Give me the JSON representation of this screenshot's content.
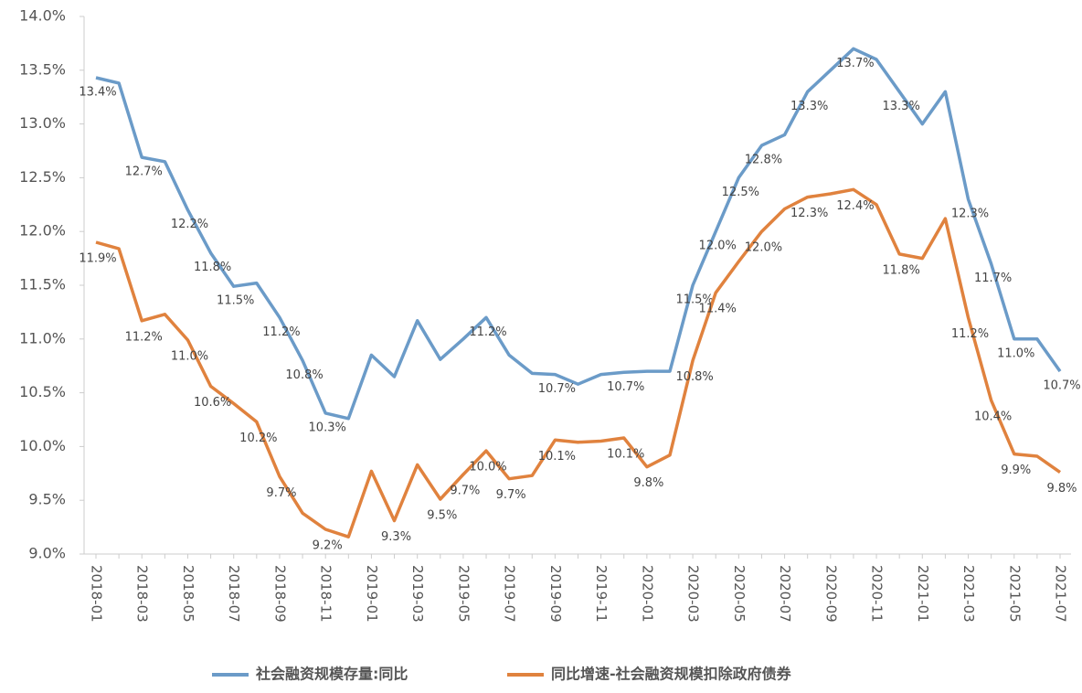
{
  "chart_data": {
    "type": "line",
    "categories": [
      "2018-01",
      null,
      "2018-03",
      null,
      "2018-05",
      null,
      "2018-07",
      null,
      "2018-09",
      null,
      "2018-11",
      null,
      "2019-01",
      null,
      "2019-03",
      null,
      "2019-05",
      null,
      "2019-07",
      null,
      "2019-09",
      null,
      "2019-11",
      null,
      "2020-01",
      null,
      "2020-03",
      null,
      "2020-05",
      null,
      "2020-07",
      null,
      "2020-09",
      null,
      "2020-11",
      null,
      "2021-01",
      null,
      "2021-03",
      null,
      "2021-05",
      null,
      "2021-07"
    ],
    "series": [
      {
        "name": "社会融资规模存量:同比",
        "color": "#6b9bc8",
        "values": [
          13.43,
          13.38,
          12.69,
          12.65,
          12.2,
          11.8,
          11.49,
          11.52,
          11.2,
          10.8,
          10.31,
          10.26,
          10.85,
          10.65,
          11.17,
          10.81,
          11.0,
          11.2,
          10.85,
          10.68,
          10.67,
          10.58,
          10.67,
          10.69,
          10.7,
          10.7,
          11.5,
          12.0,
          12.5,
          12.8,
          12.9,
          13.3,
          13.5,
          13.7,
          13.6,
          13.3,
          13.0,
          13.3,
          12.3,
          11.7,
          11.0,
          11.0,
          10.7
        ],
        "value_labels": [
          "13.4%",
          null,
          "12.7%",
          null,
          "12.2%",
          "11.8%",
          "11.5%",
          null,
          "11.2%",
          "10.8%",
          "10.3%",
          null,
          null,
          null,
          null,
          null,
          null,
          "11.2%",
          null,
          null,
          "10.7%",
          null,
          null,
          "10.7%",
          null,
          null,
          "11.5%",
          "12.0%",
          "12.5%",
          "12.8%",
          null,
          "13.3%",
          null,
          "13.7%",
          null,
          "13.3%",
          null,
          null,
          "12.3%",
          "11.7%",
          "11.0%",
          null,
          "10.7%"
        ]
      },
      {
        "name": "同比增速-社会融资规模扣除政府债券",
        "color": "#e0823e",
        "values": [
          11.9,
          11.84,
          11.17,
          11.23,
          10.99,
          10.56,
          10.4,
          10.23,
          9.72,
          9.38,
          9.23,
          9.16,
          9.77,
          9.31,
          9.83,
          9.51,
          9.74,
          9.96,
          9.7,
          9.73,
          10.06,
          10.04,
          10.05,
          10.08,
          9.81,
          9.92,
          10.8,
          11.43,
          11.72,
          12.0,
          12.21,
          12.32,
          12.35,
          12.39,
          12.25,
          11.79,
          11.75,
          12.12,
          11.2,
          10.43,
          9.93,
          9.91,
          9.76
        ],
        "value_labels": [
          "11.9%",
          null,
          "11.2%",
          null,
          "11.0%",
          "10.6%",
          null,
          "10.2%",
          "9.7%",
          null,
          "9.2%",
          null,
          null,
          "9.3%",
          null,
          "9.5%",
          "9.7%",
          "10.0%",
          "9.7%",
          null,
          "10.1%",
          null,
          null,
          "10.1%",
          "9.8%",
          null,
          "10.8%",
          "11.4%",
          null,
          "12.0%",
          null,
          "12.3%",
          null,
          "12.4%",
          null,
          "11.8%",
          null,
          null,
          "11.2%",
          "10.4%",
          "9.9%",
          null,
          "9.8%"
        ]
      }
    ],
    "ylim": [
      9,
      14
    ],
    "yticks": [
      {
        "value": 9,
        "label": "9.0%"
      },
      {
        "value": 9.5,
        "label": "9.5%"
      },
      {
        "value": 10,
        "label": "10.0%"
      },
      {
        "value": 10.5,
        "label": "10.5%"
      },
      {
        "value": 11,
        "label": "11.0%"
      },
      {
        "value": 11.5,
        "label": "11.5%"
      },
      {
        "value": 12,
        "label": "12.0%"
      },
      {
        "value": 12.5,
        "label": "12.5%"
      },
      {
        "value": 13,
        "label": "13.0%"
      },
      {
        "value": 13.5,
        "label": "13.5%"
      },
      {
        "value": 14,
        "label": "14.0%"
      }
    ],
    "grid": false,
    "legend": "bottom"
  }
}
